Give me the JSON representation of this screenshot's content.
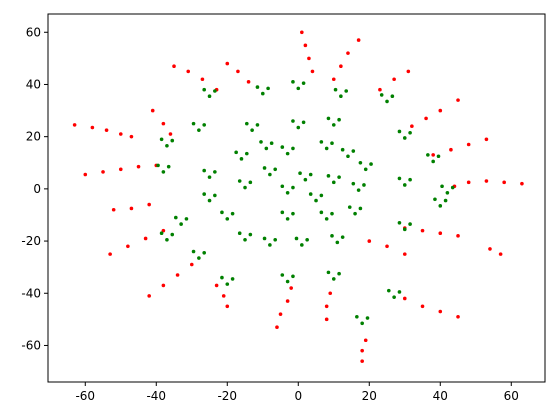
{
  "chart_data": {
    "type": "scatter",
    "xlim": [
      -70.5,
      69.5
    ],
    "ylim": [
      -74,
      67
    ],
    "xticks": [
      -60,
      -40,
      -20,
      0,
      20,
      40,
      60
    ],
    "yticks": [
      -60,
      -40,
      -20,
      0,
      20,
      40,
      60
    ],
    "series": [
      {
        "color": "#ff0000",
        "x": [
          -63,
          -58,
          -54,
          -50,
          -47,
          -60,
          -55,
          -50,
          -45,
          -40,
          -53,
          -48,
          -43,
          -38,
          -52,
          -47,
          -42,
          -42,
          -38,
          -34,
          -30,
          -35,
          -31,
          -27,
          -23,
          -41,
          -38,
          -36,
          -20,
          -17,
          -14,
          -23,
          -21,
          -20,
          -6,
          -5,
          -3,
          -2,
          1,
          2,
          3,
          4,
          17,
          14,
          12,
          10,
          31,
          27,
          23,
          45,
          40,
          36,
          32,
          53,
          48,
          43,
          38,
          63,
          58,
          53,
          48,
          44,
          45,
          40,
          35,
          30,
          57,
          54,
          45,
          40,
          35,
          30,
          18,
          18,
          19,
          8,
          8,
          9,
          20,
          25,
          30
        ],
        "y": [
          24.5,
          23.5,
          22.5,
          21,
          20,
          5.5,
          6.5,
          7.5,
          8.5,
          9,
          -25,
          -22,
          -19,
          -16,
          -8,
          -7.5,
          -6,
          -41,
          -37,
          -33,
          -29,
          47,
          45,
          42,
          38,
          30,
          25,
          21,
          48,
          45,
          41,
          -37,
          -41,
          -45,
          -53,
          -48,
          -43,
          -38,
          60,
          55,
          50,
          45,
          57,
          52,
          47,
          42,
          45,
          42,
          38,
          34,
          30,
          27,
          24,
          19,
          17,
          15,
          13,
          2,
          2.5,
          3,
          2.5,
          1,
          -18,
          -17,
          -16,
          -15,
          -25,
          -23,
          -49,
          -47,
          -45,
          -42,
          -66,
          -62,
          -58,
          -50,
          -45,
          -40,
          -20,
          -22,
          -25
        ]
      },
      {
        "color": "#008000",
        "x": [
          -21.5,
          -18.5,
          -20,
          -16.5,
          -13.5,
          -15,
          -9.5,
          -6.5,
          -8,
          -4.5,
          -1.5,
          -3,
          -0.5,
          2.5,
          1,
          6.5,
          9.5,
          8,
          9.5,
          12.5,
          11,
          14.5,
          17.5,
          16,
          15.5,
          18.5,
          17,
          17.5,
          20.5,
          19,
          12.5,
          15.5,
          14,
          6.5,
          9.5,
          8,
          0.5,
          3.5,
          2,
          -4.5,
          -1.5,
          -3,
          -10.5,
          -7.5,
          -9,
          -17.5,
          -14.5,
          -16,
          -16.5,
          -13.5,
          -15,
          -9.5,
          -6.5,
          -8,
          -4.5,
          -1.5,
          -3,
          3.5,
          6.5,
          5,
          8.5,
          11.5,
          10,
          -1.5,
          1.5,
          0,
          8.5,
          11.5,
          10,
          -14.5,
          -11.5,
          -13,
          -26.5,
          -23.5,
          -25,
          -26.5,
          -23.5,
          -25,
          -34.5,
          -31.5,
          -33,
          -29.5,
          -26.5,
          -28,
          -21.5,
          -18.5,
          -20,
          -4.5,
          -1.5,
          -3,
          8.5,
          11.5,
          10,
          16.5,
          19.5,
          18,
          25.5,
          28.5,
          27,
          28.5,
          31.5,
          30,
          28.5,
          31.5,
          30,
          38.5,
          41.5,
          40,
          36.5,
          39.5,
          38,
          28.5,
          31.5,
          30,
          -29.5,
          -26.5,
          -28,
          -38.5,
          -35.5,
          -37,
          -39.5,
          -36.5,
          -38,
          -26.5,
          -23.5,
          -25,
          -11.5,
          -8.5,
          -10,
          -1.5,
          1.5,
          0,
          10.5,
          13.5,
          12,
          23.5,
          26.5,
          25,
          40.5,
          43.5,
          42,
          -38.5,
          -35.5,
          -37
        ],
        "y": [
          -9,
          -9.5,
          -11.5,
          -17,
          -17.5,
          -19.5,
          -19,
          -19.5,
          -21.5,
          -9,
          -9.5,
          -11.5,
          -19,
          -19.5,
          -21.5,
          -9,
          -9.5,
          -11.5,
          -18,
          -18.5,
          -20.5,
          -7,
          -7.5,
          -9.5,
          2,
          1.5,
          -0.5,
          10,
          9.5,
          7.5,
          15,
          14.5,
          12.5,
          18,
          17.5,
          15.5,
          6,
          5.5,
          3.5,
          16,
          15.5,
          13.5,
          18,
          17.5,
          15.5,
          14,
          13.5,
          11.5,
          3,
          2.5,
          0.5,
          8,
          7.5,
          5.5,
          1,
          0.5,
          -1.5,
          -2,
          -2.5,
          -4.5,
          5,
          4.5,
          2.5,
          26,
          25.5,
          23.5,
          27,
          26.5,
          24.5,
          25,
          24.5,
          22.5,
          7,
          6.5,
          4.5,
          -2,
          -2.5,
          -4.5,
          -11,
          -11.5,
          -13.5,
          -24,
          -24.5,
          -26.5,
          -34,
          -34.5,
          -36.5,
          -33,
          -33.5,
          -35.5,
          -32,
          -32.5,
          -34.5,
          -49,
          -49.5,
          -51.5,
          -39,
          -39.5,
          -41.5,
          -13,
          -13.5,
          -15.5,
          4,
          3.5,
          1.5,
          -4,
          -4.5,
          -6.5,
          13,
          12.5,
          10.5,
          22,
          21.5,
          19.5,
          25,
          24.5,
          22.5,
          19,
          18.5,
          16.5,
          9,
          8.5,
          6.5,
          38,
          37.5,
          35.5,
          39,
          38.5,
          36.5,
          41,
          40.5,
          38.5,
          38,
          37.5,
          35.5,
          36,
          35.5,
          33.5,
          1,
          0.5,
          -1.5,
          -17,
          -17.5,
          -19.5
        ]
      }
    ]
  }
}
